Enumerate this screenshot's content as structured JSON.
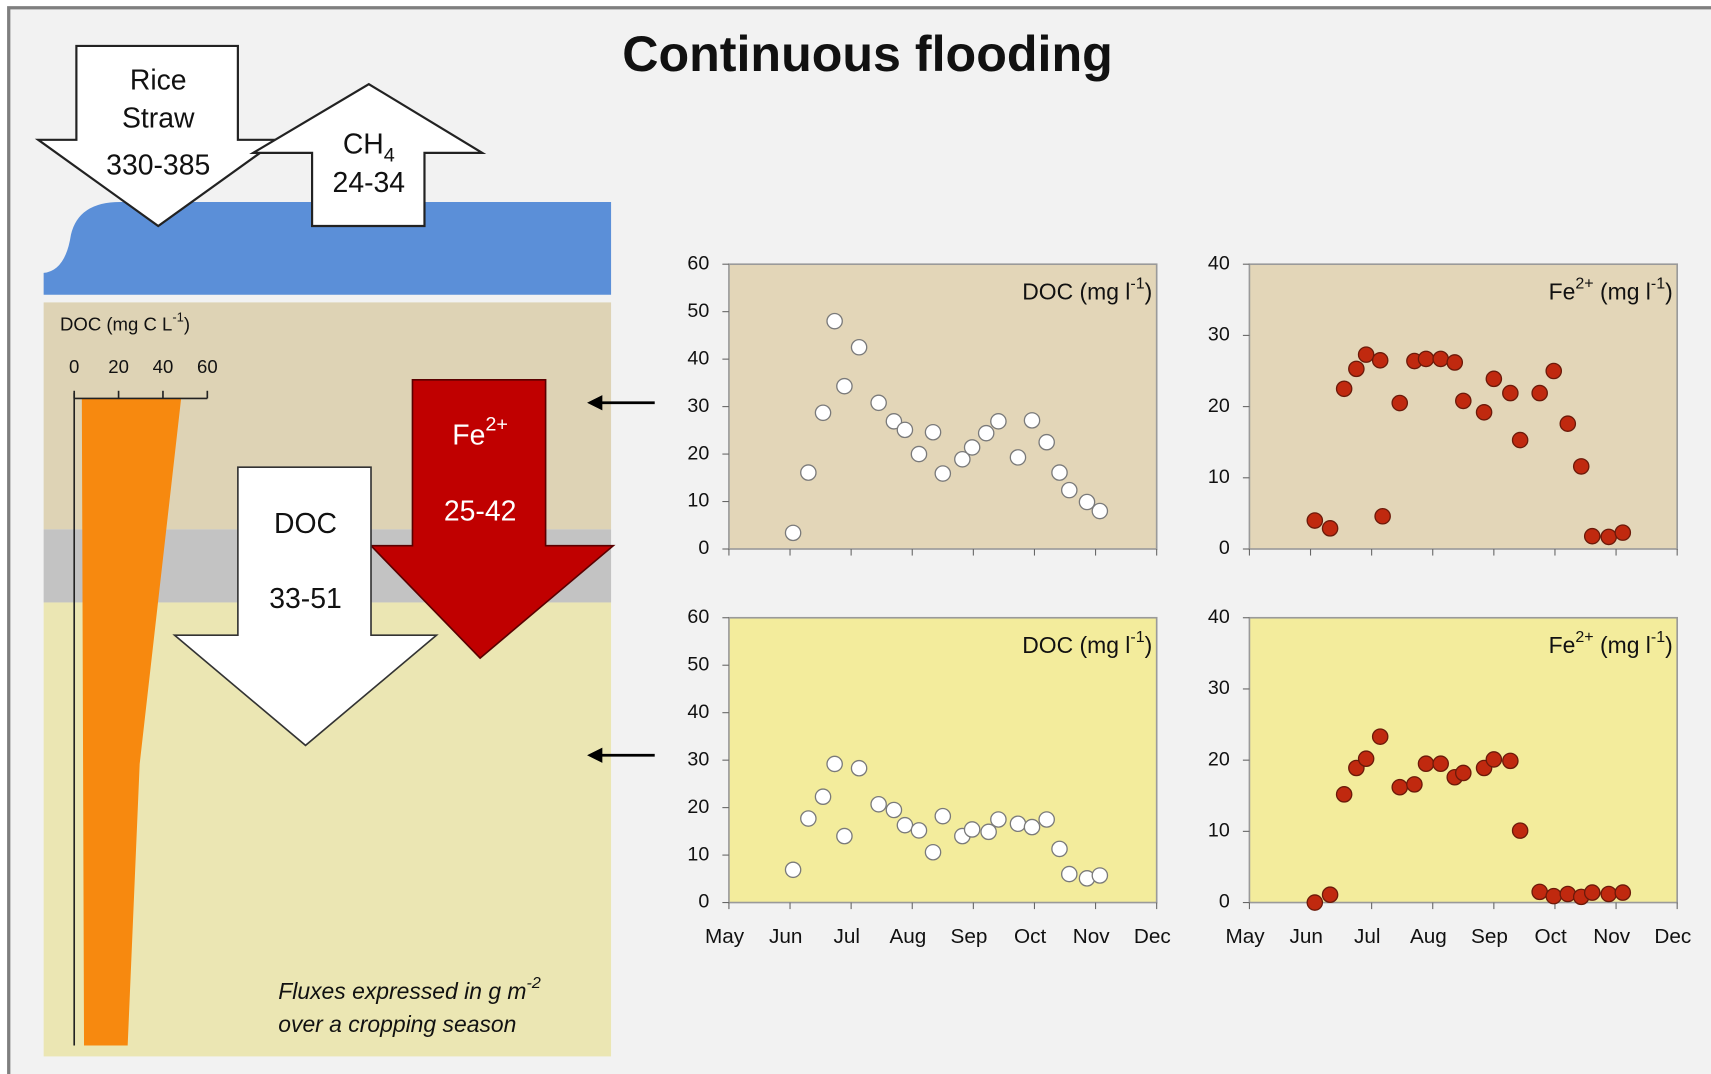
{
  "title": "Continuous flooding",
  "diagram": {
    "rice_straw": {
      "lines": [
        "Rice",
        "Straw"
      ],
      "value": "330-385"
    },
    "ch4": {
      "name": [
        "CH",
        {
          "sub": "4"
        }
      ],
      "value": "24-34"
    },
    "fe": {
      "name": [
        "Fe",
        {
          "sup": "2+"
        }
      ],
      "value": "25-42"
    },
    "doc": {
      "name": [
        "DOC"
      ],
      "value": "33-51"
    },
    "profile": {
      "label": [
        "DOC (mg C L",
        {
          "sup": "-1"
        },
        ")"
      ],
      "ticks": [
        0,
        20,
        40,
        60
      ],
      "xlim": [
        0,
        60
      ]
    },
    "note": [
      [
        "Fluxes expressed in g m",
        {
          "sup": "-2"
        }
      ],
      [
        "over a cropping season"
      ]
    ]
  },
  "chart_data": [
    {
      "type": "scatter",
      "label": [
        "DOC (mg l",
        {
          "sup": "-1"
        },
        ")"
      ],
      "background": "#e3d6b8",
      "color": "#ffffff",
      "edgecolor": "#7a7a7a",
      "xlim": [
        5,
        12
      ],
      "xticks": [
        5,
        6,
        7,
        8,
        9,
        10,
        11,
        12
      ],
      "xtick_labels": false,
      "ylim": [
        0,
        60
      ],
      "yticks": [
        0,
        10,
        20,
        30,
        40,
        50,
        60
      ],
      "x": [
        6.05,
        6.3,
        6.54,
        6.73,
        6.89,
        7.13,
        7.45,
        7.7,
        7.88,
        8.11,
        8.34,
        8.5,
        8.82,
        8.98,
        9.21,
        9.41,
        9.73,
        9.96,
        10.2,
        10.41,
        10.57,
        10.86,
        11.07
      ],
      "values": [
        3.4,
        16.1,
        28.7,
        48,
        34.3,
        42.5,
        30.8,
        26.9,
        25.1,
        20,
        24.6,
        15.9,
        18.9,
        21.4,
        24.4,
        26.9,
        19.3,
        27.1,
        22.5,
        16.1,
        12.4,
        9.9,
        8.0
      ]
    },
    {
      "type": "scatter",
      "label": [
        "Fe",
        {
          "sup": "2+"
        },
        " (mg l",
        {
          "sup": "-1"
        },
        ")"
      ],
      "background": "#e3d6b8",
      "color": "#c0290f",
      "edgecolor": "#6b1a0a",
      "xlim": [
        5,
        12
      ],
      "xticks": [
        5,
        6,
        7,
        8,
        9,
        10,
        11,
        12
      ],
      "xtick_labels": false,
      "ylim": [
        0,
        40
      ],
      "yticks": [
        0,
        10,
        20,
        30,
        40
      ],
      "x": [
        6.07,
        6.32,
        6.55,
        6.75,
        6.91,
        7.14,
        7.18,
        7.46,
        7.7,
        7.89,
        8.13,
        8.36,
        8.5,
        8.84,
        9.0,
        9.27,
        9.43,
        9.75,
        9.98,
        10.21,
        10.43,
        10.61,
        10.88,
        11.11
      ],
      "values": [
        4.0,
        2.9,
        22.5,
        25.3,
        27.3,
        26.5,
        4.6,
        20.5,
        26.4,
        26.7,
        26.7,
        26.2,
        20.8,
        19.2,
        23.9,
        21.9,
        15.3,
        21.9,
        25.0,
        17.6,
        11.6,
        1.8,
        1.7,
        2.3
      ]
    },
    {
      "type": "scatter",
      "label": [
        "DOC (mg l",
        {
          "sup": "-1"
        },
        ")"
      ],
      "background": "#f3ec9c",
      "color": "#ffffff",
      "edgecolor": "#7a7a7a",
      "xlim": [
        5,
        12
      ],
      "xticks": [
        {
          "value": 5,
          "label": "May"
        },
        {
          "value": 6,
          "label": "Jun"
        },
        {
          "value": 7,
          "label": "Jul"
        },
        {
          "value": 8,
          "label": "Aug"
        },
        {
          "value": 9,
          "label": "Sep"
        },
        {
          "value": 10,
          "label": "Oct"
        },
        {
          "value": 11,
          "label": "Nov"
        },
        {
          "value": 12,
          "label": "Dec"
        }
      ],
      "xtick_labels": true,
      "ylim": [
        0,
        60
      ],
      "yticks": [
        0,
        10,
        20,
        30,
        40,
        50,
        60
      ],
      "x": [
        6.05,
        6.3,
        6.54,
        6.73,
        6.89,
        7.13,
        7.45,
        7.7,
        7.88,
        8.11,
        8.34,
        8.5,
        8.82,
        8.98,
        9.25,
        9.41,
        9.73,
        9.96,
        10.2,
        10.41,
        10.57,
        10.86,
        11.07
      ],
      "values": [
        6.9,
        17.7,
        22.3,
        29.2,
        14.0,
        28.3,
        20.7,
        19.5,
        16.3,
        15.2,
        10.6,
        18.2,
        14.0,
        15.4,
        14.9,
        17.5,
        16.6,
        15.9,
        17.5,
        11.3,
        6.0,
        5.1,
        5.7
      ]
    },
    {
      "type": "scatter",
      "label": [
        "Fe",
        {
          "sup": "2+"
        },
        " (mg l",
        {
          "sup": "-1"
        },
        ")"
      ],
      "background": "#f3ec9c",
      "color": "#c0290f",
      "edgecolor": "#6b1a0a",
      "xlim": [
        5,
        12
      ],
      "xticks": [
        {
          "value": 5,
          "label": "May"
        },
        {
          "value": 6,
          "label": "Jun"
        },
        {
          "value": 7,
          "label": "Jul"
        },
        {
          "value": 8,
          "label": "Aug"
        },
        {
          "value": 9,
          "label": "Sep"
        },
        {
          "value": 10,
          "label": "Oct"
        },
        {
          "value": 11,
          "label": "Nov"
        },
        {
          "value": 12,
          "label": "Dec"
        }
      ],
      "xtick_labels": true,
      "ylim": [
        0,
        40
      ],
      "yticks": [
        0,
        10,
        20,
        30,
        40
      ],
      "x": [
        6.07,
        6.32,
        6.55,
        6.75,
        6.91,
        7.14,
        7.46,
        7.7,
        7.89,
        8.13,
        8.36,
        8.5,
        8.84,
        9.0,
        9.27,
        9.43,
        9.75,
        9.98,
        10.21,
        10.43,
        10.61,
        10.88,
        11.11
      ],
      "values": [
        0.0,
        1.1,
        15.2,
        18.9,
        20.2,
        23.3,
        16.2,
        16.6,
        19.5,
        19.5,
        17.6,
        18.2,
        18.9,
        20.1,
        19.9,
        10.1,
        1.5,
        0.9,
        1.2,
        0.8,
        1.4,
        1.2,
        1.4
      ]
    }
  ]
}
